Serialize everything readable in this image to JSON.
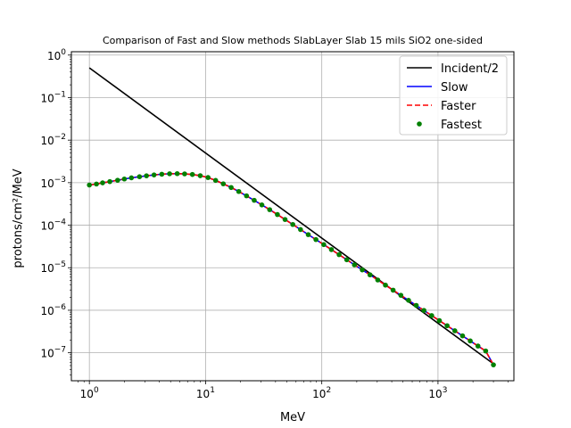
{
  "chart_data": {
    "type": "line",
    "title": "Comparison of Fast and Slow methods SlabLayer Slab 15 mils SiO2 one-sided",
    "xlabel": "MeV",
    "ylabel": "protons/cm²/MeV",
    "xscale": "log",
    "yscale": "log",
    "xlim": [
      0.7,
      4500
    ],
    "ylim": [
      2.2e-08,
      1.2
    ],
    "xticks": [
      {
        "value": 1,
        "base": "10",
        "exp": "0"
      },
      {
        "value": 10,
        "base": "10",
        "exp": "1"
      },
      {
        "value": 100,
        "base": "10",
        "exp": "2"
      },
      {
        "value": 1000,
        "base": "10",
        "exp": "3"
      }
    ],
    "yticks": [
      {
        "value": 1e-07,
        "base": "10",
        "exp": "−7"
      },
      {
        "value": 1e-06,
        "base": "10",
        "exp": "−6"
      },
      {
        "value": 1e-05,
        "base": "10",
        "exp": "−5"
      },
      {
        "value": 0.0001,
        "base": "10",
        "exp": "−4"
      },
      {
        "value": 0.001,
        "base": "10",
        "exp": "−3"
      },
      {
        "value": 0.01,
        "base": "10",
        "exp": "−2"
      },
      {
        "value": 0.1,
        "base": "10",
        "exp": "−1"
      },
      {
        "value": 1,
        "base": "10",
        "exp": "0"
      }
    ],
    "grid": true,
    "legend_position": "top-right",
    "series": [
      {
        "name": "Incident/2",
        "style": "solid",
        "color": "#000000",
        "x": [
          1,
          3000
        ],
        "y": [
          0.5,
          5.5e-08
        ]
      },
      {
        "name": "Slow",
        "style": "solid",
        "color": "#0000ff",
        "x": [
          1,
          1.15,
          1.3,
          1.5,
          1.75,
          2,
          2.3,
          2.7,
          3.1,
          3.6,
          4.2,
          4.9,
          5.7,
          6.6,
          7.7,
          9,
          10.5,
          12.2,
          14.2,
          16.6,
          19.3,
          22.5,
          26.2,
          30.5,
          35.6,
          41.5,
          48.3,
          56.3,
          65.6,
          76.5,
          89,
          104,
          121,
          141,
          164,
          191,
          223,
          260,
          303,
          353,
          411,
          479,
          558,
          650,
          757,
          882,
          1028,
          1198,
          1396,
          1626,
          1895,
          2208,
          2573,
          3000
        ],
        "y": [
          0.00088,
          0.00093,
          0.00099,
          0.00106,
          0.00114,
          0.00122,
          0.0013,
          0.00138,
          0.00145,
          0.00152,
          0.00158,
          0.00162,
          0.00163,
          0.00161,
          0.00156,
          0.00146,
          0.00132,
          0.00113,
          0.00094,
          0.00077,
          0.00062,
          0.00049,
          0.000385,
          0.0003,
          0.000232,
          0.000178,
          0.000136,
          0.000104,
          7.9e-05,
          6e-05,
          4.6e-05,
          3.5e-05,
          2.67e-05,
          2.03e-05,
          1.54e-05,
          1.17e-05,
          8.9e-06,
          6.8e-06,
          5.15e-06,
          3.9e-06,
          2.97e-06,
          2.25e-06,
          1.71e-06,
          1.3e-06,
          9.9e-07,
          7.5e-07,
          5.7e-07,
          4.33e-07,
          3.29e-07,
          2.5e-07,
          1.9e-07,
          1.44e-07,
          1.1e-07,
          5.2e-08
        ]
      },
      {
        "name": "Faster",
        "style": "dashed",
        "color": "#ff0000",
        "x": [
          1,
          1.15,
          1.3,
          1.5,
          1.75,
          2,
          2.3,
          2.7,
          3.1,
          3.6,
          4.2,
          4.9,
          5.7,
          6.6,
          7.7,
          9,
          10.5,
          12.2,
          14.2,
          16.6,
          19.3,
          22.5,
          26.2,
          30.5,
          35.6,
          41.5,
          48.3,
          56.3,
          65.6,
          76.5,
          89,
          104,
          121,
          141,
          164,
          191,
          223,
          260,
          303,
          353,
          411,
          479,
          558,
          650,
          757,
          882,
          1028,
          1198,
          1396,
          1626,
          1895,
          2208,
          2573,
          3000
        ],
        "y": [
          0.00088,
          0.00093,
          0.00099,
          0.00106,
          0.00114,
          0.00122,
          0.0013,
          0.00138,
          0.00145,
          0.00152,
          0.00158,
          0.00162,
          0.00163,
          0.00161,
          0.00156,
          0.00146,
          0.00132,
          0.00113,
          0.00094,
          0.00077,
          0.00062,
          0.00049,
          0.000385,
          0.0003,
          0.000232,
          0.000178,
          0.000136,
          0.000104,
          7.9e-05,
          6e-05,
          4.6e-05,
          3.5e-05,
          2.67e-05,
          2.03e-05,
          1.54e-05,
          1.17e-05,
          8.9e-06,
          6.8e-06,
          5.15e-06,
          3.9e-06,
          2.97e-06,
          2.25e-06,
          1.71e-06,
          1.3e-06,
          9.9e-07,
          7.5e-07,
          5.7e-07,
          4.33e-07,
          3.29e-07,
          2.5e-07,
          1.9e-07,
          1.44e-07,
          1.1e-07,
          5.2e-08
        ]
      },
      {
        "name": "Fastest",
        "style": "markers",
        "color": "#008000",
        "x": [
          1,
          1.15,
          1.3,
          1.5,
          1.75,
          2,
          2.3,
          2.7,
          3.1,
          3.6,
          4.2,
          4.9,
          5.7,
          6.6,
          7.7,
          9,
          10.5,
          12.2,
          14.2,
          16.6,
          19.3,
          22.5,
          26.2,
          30.5,
          35.6,
          41.5,
          48.3,
          56.3,
          65.6,
          76.5,
          89,
          104,
          121,
          141,
          164,
          191,
          223,
          260,
          303,
          353,
          411,
          479,
          558,
          650,
          757,
          882,
          1028,
          1198,
          1396,
          1626,
          1895,
          2208,
          2573,
          3000
        ],
        "y": [
          0.00088,
          0.00093,
          0.00099,
          0.00106,
          0.00114,
          0.00122,
          0.0013,
          0.00138,
          0.00145,
          0.00152,
          0.00158,
          0.00162,
          0.00163,
          0.00161,
          0.00156,
          0.00146,
          0.00132,
          0.00113,
          0.00094,
          0.00077,
          0.00062,
          0.00049,
          0.000385,
          0.0003,
          0.000232,
          0.000178,
          0.000136,
          0.000104,
          7.9e-05,
          6e-05,
          4.6e-05,
          3.5e-05,
          2.67e-05,
          2.03e-05,
          1.54e-05,
          1.17e-05,
          8.9e-06,
          6.8e-06,
          5.15e-06,
          3.9e-06,
          2.97e-06,
          2.25e-06,
          1.71e-06,
          1.3e-06,
          9.9e-07,
          7.5e-07,
          5.7e-07,
          4.33e-07,
          3.29e-07,
          2.5e-07,
          1.9e-07,
          1.44e-07,
          1.1e-07,
          5.2e-08
        ]
      }
    ]
  }
}
